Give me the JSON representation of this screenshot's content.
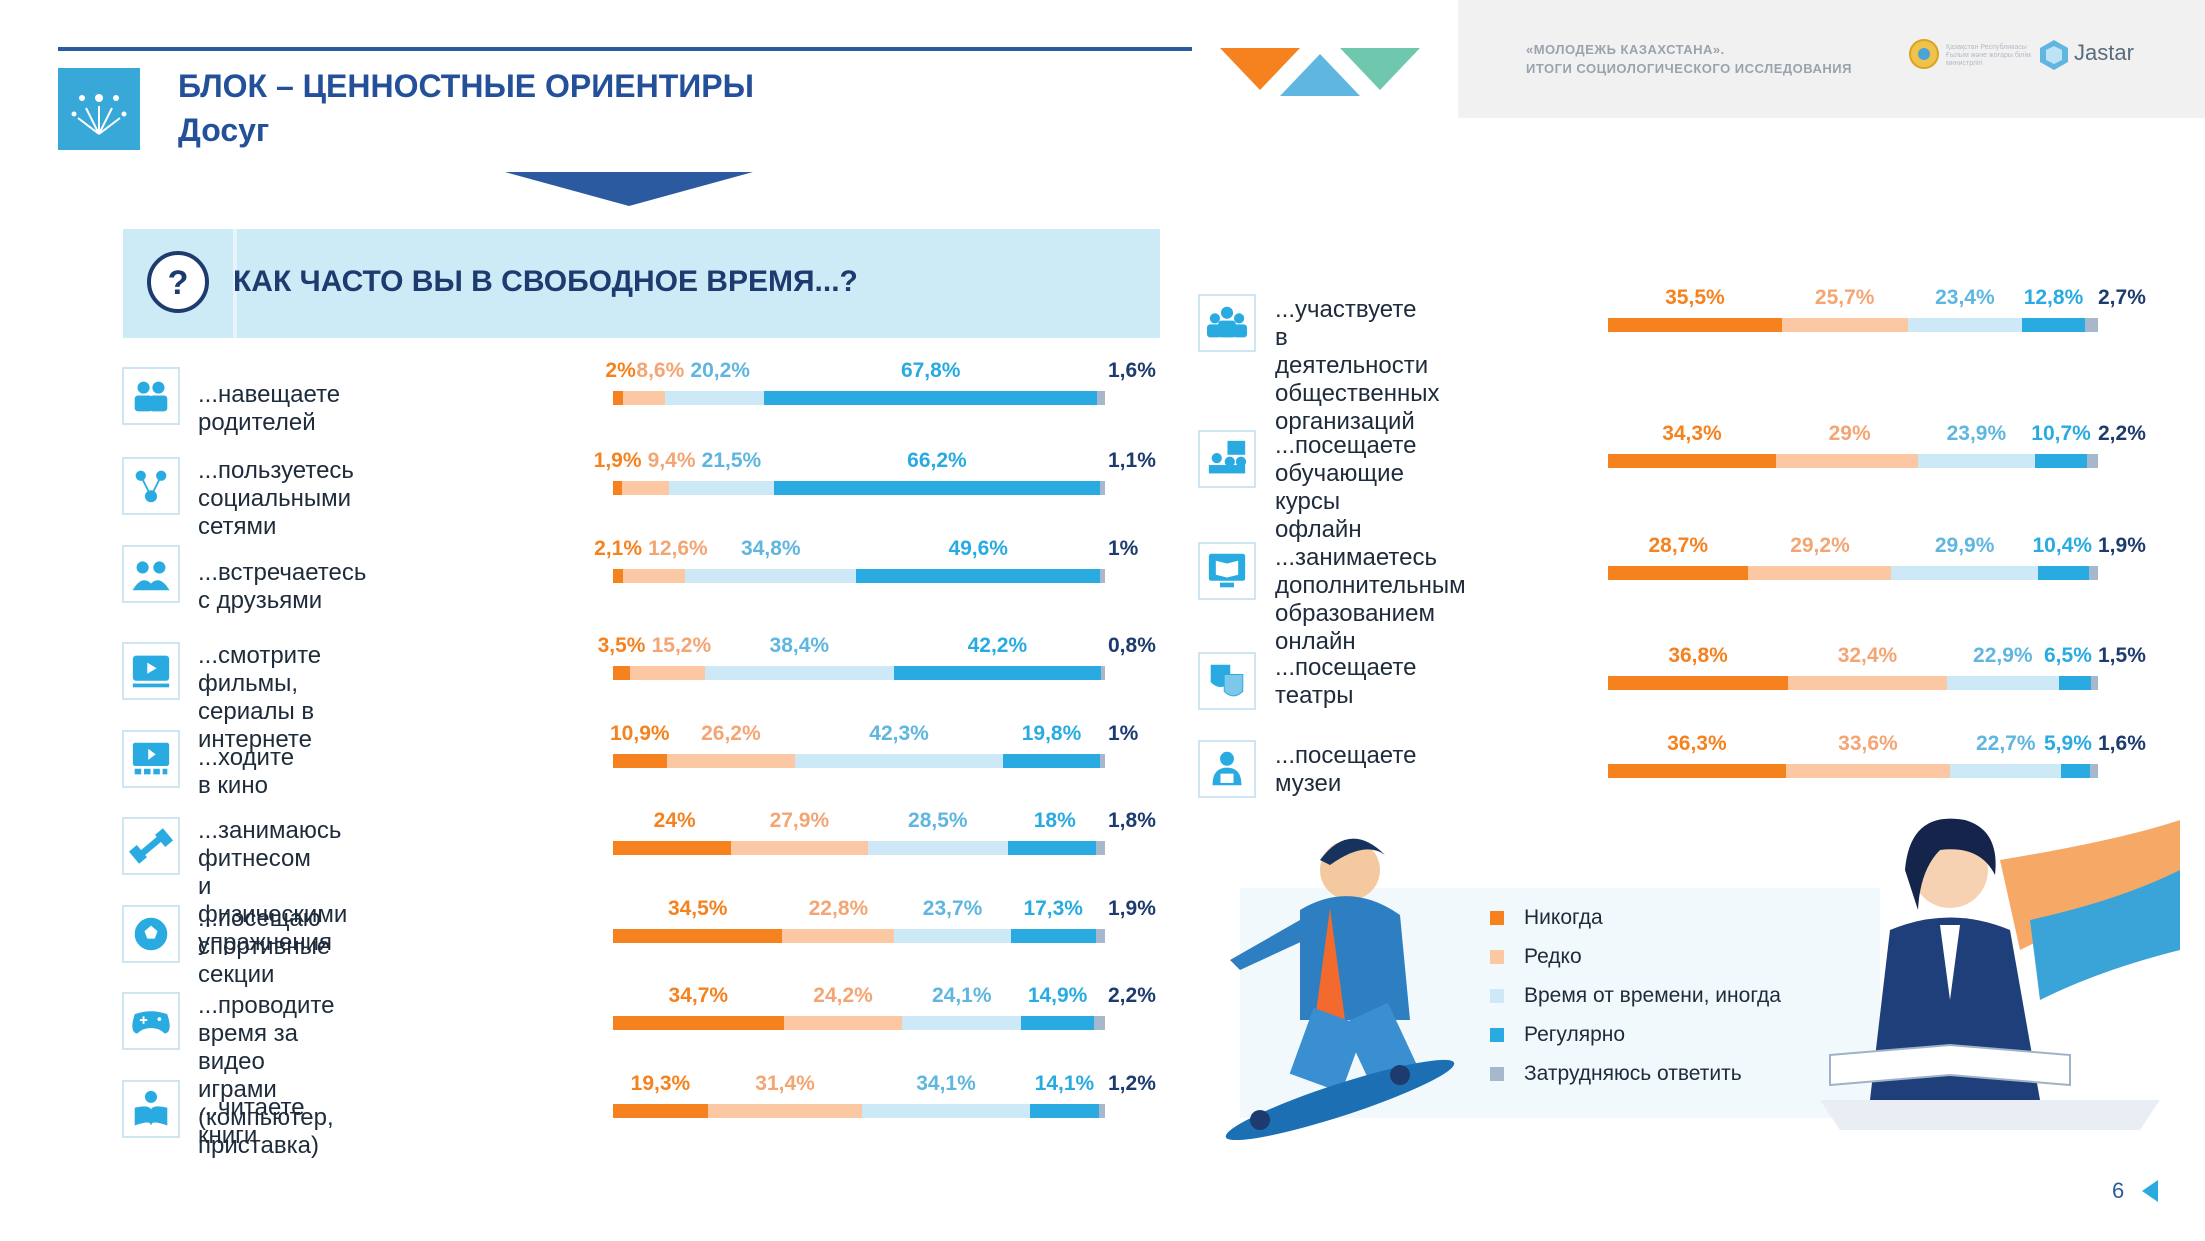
{
  "header": {
    "title": "БЛОК – ЦЕННОСТНЫЕ ОРИЕНТИРЫ",
    "subtitle": "Досуг",
    "project_line1": "«МОЛОДЕЖЬ КАЗАХСТАНА».",
    "project_line2": "ИТОГИ СОЦИОЛОГИЧЕСКОГО ИССЛЕДОВАНИЯ",
    "brand": "Jastar",
    "emblem_text": "Қазақстан Республикасы Ғылым және жоғары білім министрлігі"
  },
  "question": {
    "icon": "question-icon",
    "text": "КАК ЧАСТО ВЫ В СВОБОДНОЕ ВРЕМЯ...?"
  },
  "colors": {
    "never": "#f5821f",
    "rarely": "#fcc8a3",
    "sometimes": "#cde9f8",
    "regularly": "#29abe2",
    "dont_know": "#a8b8cc",
    "navy": "#1d3b6e"
  },
  "legend": [
    {
      "key": "never",
      "label": "Никогда"
    },
    {
      "key": "rarely",
      "label": "Редко"
    },
    {
      "key": "sometimes",
      "label": "Время от времени, иногда"
    },
    {
      "key": "regularly",
      "label": "Регулярно"
    },
    {
      "key": "dont_know",
      "label": "Затрудняюсь ответить"
    }
  ],
  "chart_data": {
    "type": "bar",
    "stacked": true,
    "orientation": "horizontal",
    "series_names": [
      "Никогда",
      "Редко",
      "Время от времени, иногда",
      "Регулярно",
      "Затрудняюсь ответить"
    ],
    "left_items": [
      {
        "label": [
          "...навещаете родителей"
        ],
        "icon": "family-icon",
        "values": [
          2,
          8.6,
          20.2,
          67.8,
          1.6
        ],
        "labels": [
          "2%",
          "8,6%",
          "20,2%",
          "67,8%",
          "1,6%"
        ]
      },
      {
        "label": [
          "...пользуетесь",
          "социальными сетями"
        ],
        "icon": "social-network-icon",
        "values": [
          1.9,
          9.4,
          21.5,
          66.2,
          1.1
        ],
        "labels": [
          "1,9%",
          "9,4%",
          "21,5%",
          "66,2%",
          "1,1%"
        ]
      },
      {
        "label": [
          "...встречаетесь с друзьями"
        ],
        "icon": "friends-icon",
        "values": [
          2.1,
          12.6,
          34.8,
          49.6,
          1
        ],
        "labels": [
          "2,1%",
          "12,6%",
          "34,8%",
          "49,6%",
          "1%"
        ]
      },
      {
        "label": [
          "...смотрите фильмы,",
          "сериалы в интернете"
        ],
        "icon": "video-play-icon",
        "values": [
          3.5,
          15.2,
          38.4,
          42.2,
          0.8
        ],
        "labels": [
          "3,5%",
          "15,2%",
          "38,4%",
          "42,2%",
          "0,8%"
        ]
      },
      {
        "label": [
          "...ходите в кино"
        ],
        "icon": "cinema-icon",
        "values": [
          10.9,
          26.2,
          42.3,
          19.8,
          1
        ],
        "labels": [
          "10,9%",
          "26,2%",
          "42,3%",
          "19,8%",
          "1%"
        ]
      },
      {
        "label": [
          "...занимаюсь фитнесом",
          "и физическими упражнения"
        ],
        "icon": "dumbbell-icon",
        "values": [
          24,
          27.9,
          28.5,
          18,
          1.8
        ],
        "labels": [
          "24%",
          "27,9%",
          "28,5%",
          "18%",
          "1,8%"
        ]
      },
      {
        "label": [
          "...посещаю",
          "спортивные секции"
        ],
        "icon": "football-icon",
        "values": [
          34.5,
          22.8,
          23.7,
          17.3,
          1.9
        ],
        "labels": [
          "34,5%",
          "22,8%",
          "23,7%",
          "17,3%",
          "1,9%"
        ]
      },
      {
        "label": [
          "...проводите время за видео",
          "играми (компьютер, приставка)"
        ],
        "icon": "gamepad-icon",
        "values": [
          34.7,
          24.2,
          24.1,
          14.9,
          2.2
        ],
        "labels": [
          "34,7%",
          "24,2%",
          "24,1%",
          "14,9%",
          "2,2%"
        ]
      },
      {
        "label": [
          "...читаете книги"
        ],
        "icon": "reading-icon",
        "values": [
          19.3,
          31.4,
          34.1,
          14.1,
          1.2
        ],
        "labels": [
          "19,3%",
          "31,4%",
          "34,1%",
          "14,1%",
          "1,2%"
        ]
      }
    ],
    "right_items": [
      {
        "label": [
          "...участвуете",
          "в деятельности",
          "общественных",
          "организаций"
        ],
        "icon": "community-icon",
        "values": [
          35.5,
          25.7,
          23.4,
          12.8,
          2.7
        ],
        "labels": [
          "35,5%",
          "25,7%",
          "23,4%",
          "12,8%",
          "2,7%"
        ]
      },
      {
        "label": [
          "...посещаете",
          "обучающие курсы",
          "офлайн"
        ],
        "icon": "classroom-icon",
        "values": [
          34.3,
          29,
          23.9,
          10.7,
          2.2
        ],
        "labels": [
          "34,3%",
          "29%",
          "23,9%",
          "10,7%",
          "2,2%"
        ]
      },
      {
        "label": [
          "...занимаетесь",
          "дополнительным",
          "образованием онлайн"
        ],
        "icon": "online-book-icon",
        "values": [
          28.7,
          29.2,
          29.9,
          10.4,
          1.9
        ],
        "labels": [
          "28,7%",
          "29,2%",
          "29,9%",
          "10,4%",
          "1,9%"
        ]
      },
      {
        "label": [
          "...посещаете театры"
        ],
        "icon": "theater-masks-icon",
        "values": [
          36.8,
          32.4,
          22.9,
          6.5,
          1.5
        ],
        "labels": [
          "36,8%",
          "32,4%",
          "22,9%",
          "6,5%",
          "1,5%"
        ]
      },
      {
        "label": [
          "...посещаете музеи"
        ],
        "icon": "museum-visitor-icon",
        "values": [
          36.3,
          33.6,
          22.7,
          5.9,
          1.6
        ],
        "labels": [
          "36,3%",
          "33,6%",
          "22,7%",
          "5,9%",
          "1,6%"
        ]
      }
    ]
  },
  "page_number": "6"
}
